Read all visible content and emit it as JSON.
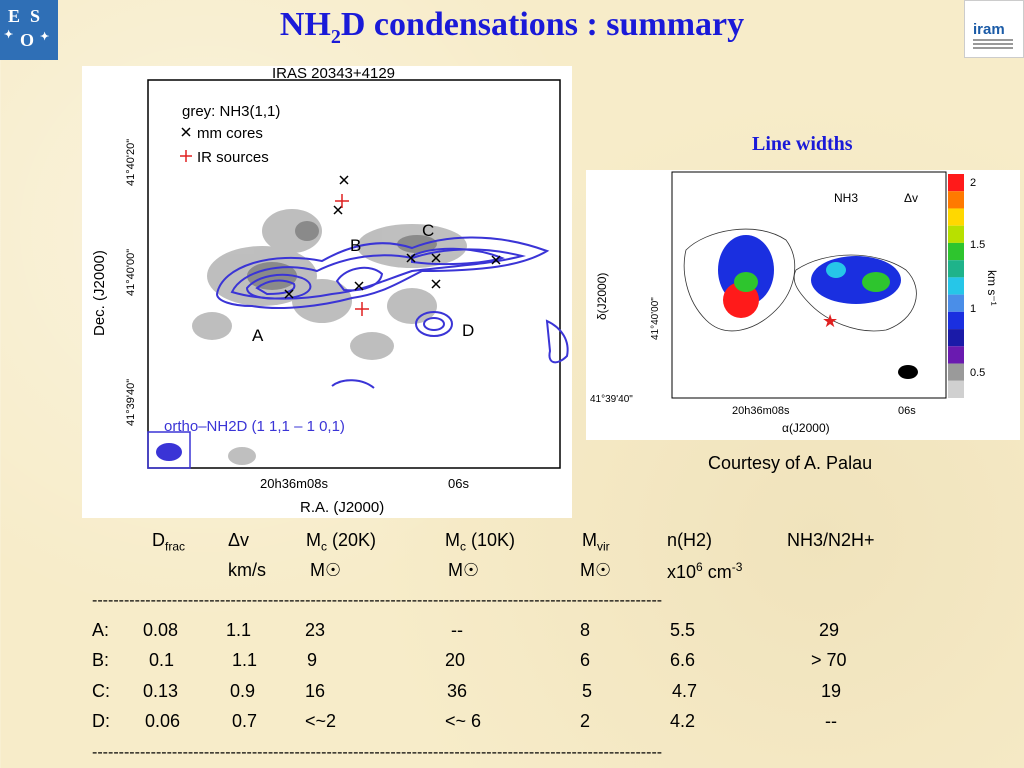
{
  "title": {
    "main": "NH",
    "sub": "2",
    "rest": "D condensations : summary"
  },
  "logos": {
    "eso": "ESO",
    "iram": "iram"
  },
  "left_figure": {
    "title": "IRAS 20343+4129",
    "legend": [
      "grey: NH3(1,1)",
      "mm cores",
      "IR sources"
    ],
    "ylabel": "Dec. (J2000)",
    "xlabel": "R.A. (J2000)",
    "yticks": [
      "41°40'20\"",
      "41°40'00\"",
      "41°39'40\""
    ],
    "xticks": [
      "20h36m08s",
      "06s"
    ],
    "labels": [
      "A",
      "B",
      "C",
      "D"
    ],
    "bottom_label": "ortho–NH2D (1 1,1 – 1 0,1)"
  },
  "right_figure": {
    "section_title": "Line widths",
    "header_species": "NH3",
    "header_quantity": "Δv",
    "ylabel": "δ(J2000)",
    "xlabel": "α(J2000)",
    "yticks": [
      "41°40'00\"",
      "41°39'40\""
    ],
    "xticks": [
      "20h36m08s",
      "06s"
    ],
    "colorbar_ticks": [
      "2",
      "1.5",
      "1",
      "0.5"
    ],
    "colorbar_unit": "km s⁻¹",
    "colorbar_colors": [
      "#ff1a1a",
      "#ff7a00",
      "#ffd800",
      "#b8e000",
      "#2ec52e",
      "#1fb38a",
      "#26c6e8",
      "#4a8ee8",
      "#1a2fe0",
      "#1a1aa8",
      "#6a1ab0",
      "#9a9a9a",
      "#d0d0d0"
    ],
    "courtesy": "Courtesy of A. Palau"
  },
  "table": {
    "headers": [
      {
        "main": "D",
        "sub": "frac",
        "sup": ""
      },
      {
        "main": "Δv",
        "sub": "",
        "sup": ""
      },
      {
        "main": "M",
        "sub": "c",
        "sup": "",
        "rest": " (20K)"
      },
      {
        "main": "M",
        "sub": "c",
        "sup": "",
        "rest": " (10K)"
      },
      {
        "main": "M",
        "sub": "vir",
        "sup": ""
      },
      {
        "main": "n(H2)",
        "sub": "",
        "sup": ""
      },
      {
        "main": "NH3/N2H+",
        "sub": "",
        "sup": ""
      }
    ],
    "units": [
      "km/s",
      "M☉",
      "M☉",
      "M☉",
      "x10",
      "6",
      " cm",
      "-3"
    ],
    "separator": "-----------------------------------------------------------------------------------------------------------",
    "rows": [
      {
        "label": "A:",
        "dfrac": "0.08",
        "dv": "1.1",
        "mc20": "23",
        "mc10": "--",
        "mvir": "8",
        "nh2": "5.5",
        "ratio": "29"
      },
      {
        "label": "B:",
        "dfrac": "0.1",
        "dv": "1.1",
        "mc20": "9",
        "mc10": "20",
        "mvir": "6",
        "nh2": "6.6",
        "ratio": "> 70"
      },
      {
        "label": "C:",
        "dfrac": "0.13",
        "dv": "0.9",
        "mc20": "16",
        "mc10": "36",
        "mvir": "5",
        "nh2": "4.7",
        "ratio": "19"
      },
      {
        "label": "D:",
        "dfrac": "0.06",
        "dv": "0.7",
        "mc20": "<~2",
        "mc10": "<~ 6",
        "mvir": "2",
        "nh2": "4.2",
        "ratio": "--"
      }
    ]
  }
}
